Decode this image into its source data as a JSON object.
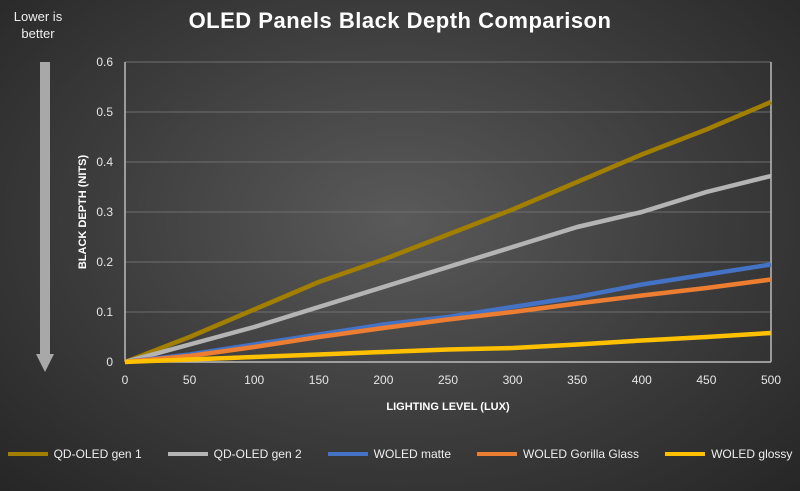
{
  "chart_data": {
    "type": "line",
    "title": "OLED Panels Black Depth Comparison",
    "annotation": "Lower is better",
    "xlabel": "LIGHTING LEVEL (LUX)",
    "ylabel": "BLACK DEPTH (NITS)",
    "xlim": [
      0,
      500
    ],
    "ylim": [
      0,
      0.6
    ],
    "x_ticks": [
      "0",
      "50",
      "100",
      "150",
      "200",
      "250",
      "300",
      "350",
      "400",
      "450",
      "500"
    ],
    "y_ticks": [
      "0",
      "0.1",
      "0.2",
      "0.3",
      "0.4",
      "0.5",
      "0.6"
    ],
    "grid": true,
    "legend": "bottom",
    "x": [
      0,
      50,
      100,
      150,
      200,
      250,
      300,
      350,
      400,
      450,
      500
    ],
    "series": [
      {
        "name": "QD-OLED gen 1",
        "color": "#a37f00",
        "values": [
          0,
          0.05,
          0.105,
          0.16,
          0.205,
          0.255,
          0.305,
          0.36,
          0.415,
          0.465,
          0.52
        ]
      },
      {
        "name": "QD-OLED gen 2",
        "color": "#b4b4b4",
        "values": [
          0,
          0.035,
          0.07,
          0.11,
          0.15,
          0.19,
          0.23,
          0.27,
          0.3,
          0.34,
          0.372
        ]
      },
      {
        "name": "WOLED matte",
        "color": "#4472c4",
        "values": [
          0,
          0.015,
          0.035,
          0.055,
          0.075,
          0.09,
          0.11,
          0.13,
          0.155,
          0.175,
          0.195
        ]
      },
      {
        "name": "WOLED Gorilla Glass",
        "color": "#ed7d31",
        "values": [
          0,
          0.012,
          0.03,
          0.05,
          0.068,
          0.085,
          0.1,
          0.117,
          0.133,
          0.148,
          0.165
        ]
      },
      {
        "name": "WOLED glossy",
        "color": "#ffc000",
        "values": [
          0,
          0.005,
          0.01,
          0.015,
          0.02,
          0.025,
          0.028,
          0.035,
          0.043,
          0.05,
          0.058
        ]
      }
    ]
  }
}
